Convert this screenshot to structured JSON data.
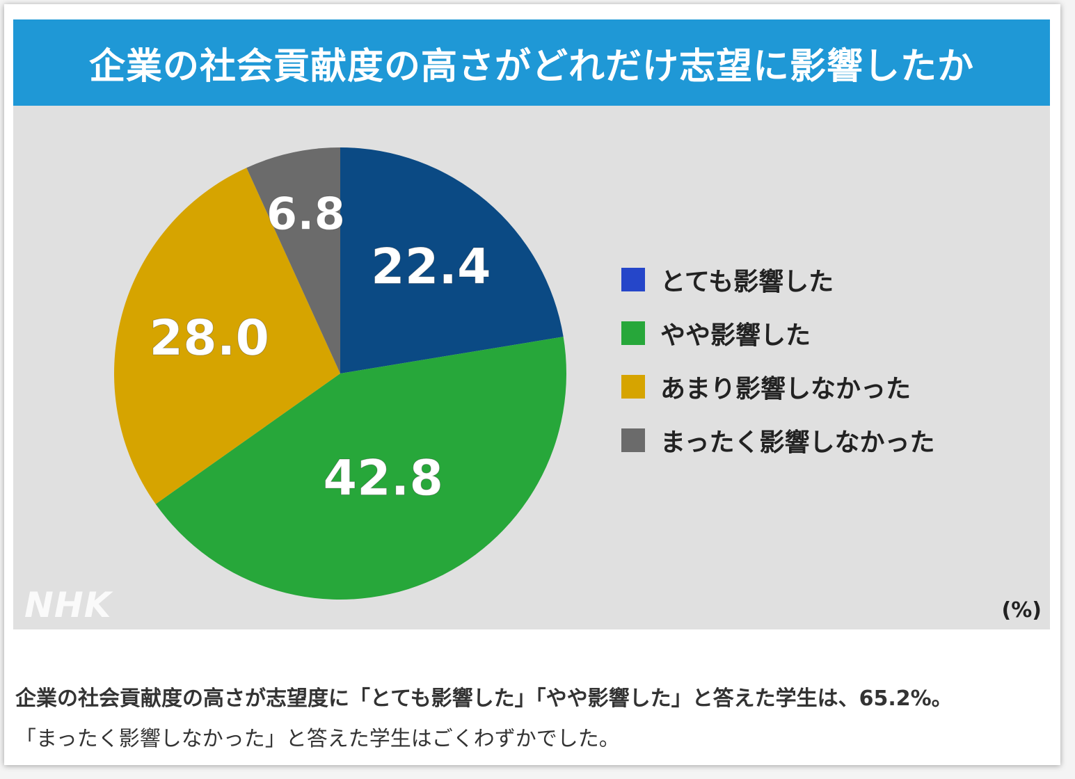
{
  "title": "企業の社会貢献度の高さがどれだけ志望に影響したか",
  "chart_data": {
    "type": "pie",
    "unit": "(%)",
    "slices": [
      {
        "label": "とても影響した",
        "value": 22.4,
        "value_label": "22.4",
        "color": "#0b4a84"
      },
      {
        "label": "やや影響した",
        "value": 42.8,
        "value_label": "42.8",
        "color": "#27a73a"
      },
      {
        "label": "あまり影響しなかった",
        "value": 28.0,
        "value_label": "28.0",
        "color": "#d6a400"
      },
      {
        "label": "まったく影響しなかった",
        "value": 6.8,
        "value_label": "6.8",
        "color": "#6b6b6b"
      }
    ],
    "legend_colors": [
      "#2546c9",
      "#27a73a",
      "#d6a400",
      "#6b6b6b"
    ],
    "legend_position": "right"
  },
  "logo": "NHK",
  "caption": {
    "line1": "企業の社会貢献度の高さが志望度に「とても影響した」「やや影響した」と答えた学生は、65.2%。",
    "line2": "「まったく影響しなかった」と答えた学生はごくわずかでした。"
  }
}
